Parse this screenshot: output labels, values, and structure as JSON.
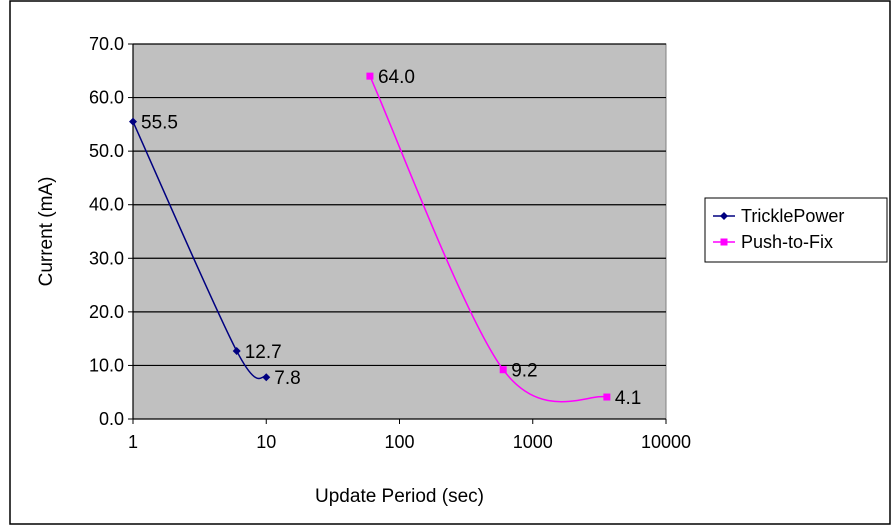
{
  "chart_data": {
    "type": "line",
    "xlabel": "Update Period (sec)",
    "ylabel": "Current (mA)",
    "x_scale": "log",
    "xlim": [
      1,
      10000
    ],
    "ylim": [
      0,
      70
    ],
    "x_ticks": [
      "1",
      "10",
      "100",
      "1000",
      "10000"
    ],
    "y_ticks": [
      "0.0",
      "10.0",
      "20.0",
      "30.0",
      "40.0",
      "50.0",
      "60.0",
      "70.0"
    ],
    "grid": "horizontal",
    "legend_position": "right",
    "series": [
      {
        "name": "TricklePower",
        "color": "#000080",
        "marker": "diamond",
        "points": [
          {
            "x": 1,
            "y": 55.5,
            "label": "55.5"
          },
          {
            "x": 6,
            "y": 12.7,
            "label": "12.7"
          },
          {
            "x": 10,
            "y": 7.8,
            "label": "7.8"
          }
        ]
      },
      {
        "name": "Push-to-Fix",
        "color": "#ff00ff",
        "marker": "square",
        "points": [
          {
            "x": 60,
            "y": 64.0,
            "label": "64.0"
          },
          {
            "x": 600,
            "y": 9.2,
            "label": "9.2"
          },
          {
            "x": 3600,
            "y": 4.1,
            "label": "4.1"
          }
        ]
      }
    ],
    "colors": {
      "plot_background": "#c0c0c0",
      "gridline": "#000000",
      "frame": "#000000"
    }
  }
}
